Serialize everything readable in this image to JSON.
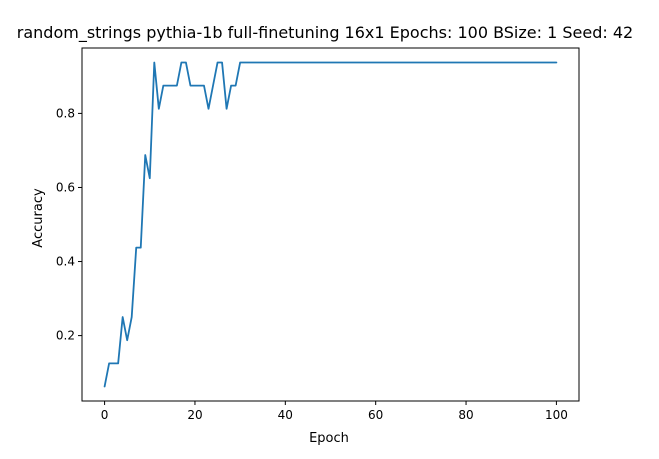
{
  "chart_data": {
    "type": "line",
    "title": "random_strings pythia-1b full-finetuning 16x1 Epochs: 100 BSize: 1 Seed: 42",
    "xlabel": "Epoch",
    "ylabel": "Accuracy",
    "xlim": [
      -5,
      105
    ],
    "ylim": [
      0.0234,
      0.9766
    ],
    "xticks": [
      0,
      20,
      40,
      60,
      80,
      100
    ],
    "xtick_labels": [
      "0",
      "20",
      "40",
      "60",
      "80",
      "100"
    ],
    "yticks": [
      0.2,
      0.4,
      0.6,
      0.8
    ],
    "ytick_labels": [
      "0.2",
      "0.4",
      "0.6",
      "0.8"
    ],
    "grid": false,
    "line_color": "#1f77b4",
    "series": [
      {
        "x": [
          0,
          1,
          2,
          3,
          4,
          5,
          6,
          7,
          8,
          9,
          10,
          11,
          12,
          13,
          14,
          15,
          16,
          17,
          18,
          19,
          20,
          21,
          22,
          23,
          24,
          25,
          26,
          27,
          28,
          29,
          30,
          31,
          32,
          33,
          34,
          35,
          36,
          37,
          38,
          39,
          40,
          41,
          42,
          43,
          44,
          45,
          46,
          47,
          48,
          49,
          50,
          51,
          52,
          53,
          54,
          55,
          56,
          57,
          58,
          59,
          60,
          61,
          62,
          63,
          64,
          65,
          66,
          67,
          68,
          69,
          70,
          71,
          72,
          73,
          74,
          75,
          76,
          77,
          78,
          79,
          80,
          81,
          82,
          83,
          84,
          85,
          86,
          87,
          88,
          89,
          90,
          91,
          92,
          93,
          94,
          95,
          96,
          97,
          98,
          99,
          100
        ],
        "values": [
          0.0625,
          0.125,
          0.125,
          0.125,
          0.25,
          0.1875,
          0.25,
          0.4375,
          0.4375,
          0.6875,
          0.625,
          0.9375,
          0.8125,
          0.875,
          0.875,
          0.875,
          0.875,
          0.9375,
          0.9375,
          0.875,
          0.875,
          0.875,
          0.875,
          0.8125,
          0.875,
          0.9375,
          0.9375,
          0.8125,
          0.875,
          0.875,
          0.9375,
          0.9375,
          0.9375,
          0.9375,
          0.9375,
          0.9375,
          0.9375,
          0.9375,
          0.9375,
          0.9375,
          0.9375,
          0.9375,
          0.9375,
          0.9375,
          0.9375,
          0.9375,
          0.9375,
          0.9375,
          0.9375,
          0.9375,
          0.9375,
          0.9375,
          0.9375,
          0.9375,
          0.9375,
          0.9375,
          0.9375,
          0.9375,
          0.9375,
          0.9375,
          0.9375,
          0.9375,
          0.9375,
          0.9375,
          0.9375,
          0.9375,
          0.9375,
          0.9375,
          0.9375,
          0.9375,
          0.9375,
          0.9375,
          0.9375,
          0.9375,
          0.9375,
          0.9375,
          0.9375,
          0.9375,
          0.9375,
          0.9375,
          0.9375,
          0.9375,
          0.9375,
          0.9375,
          0.9375,
          0.9375,
          0.9375,
          0.9375,
          0.9375,
          0.9375,
          0.9375,
          0.9375,
          0.9375,
          0.9375,
          0.9375,
          0.9375,
          0.9375,
          0.9375,
          0.9375,
          0.9375,
          0.9375
        ]
      }
    ]
  }
}
